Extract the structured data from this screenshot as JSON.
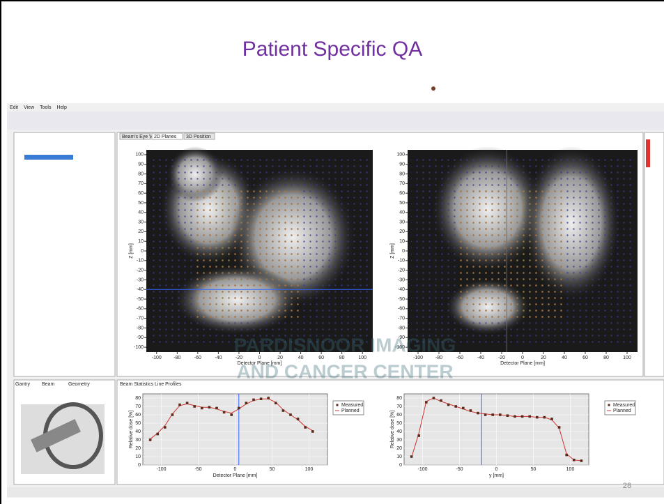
{
  "slide": {
    "title": "Patient Specific QA",
    "page_number": "28",
    "watermark": [
      "PARDISNOOR IMAGING",
      "AND CANCER CENTER"
    ]
  },
  "screenshot": {
    "menu": [
      "Edit",
      "View",
      "Tools",
      "Help"
    ],
    "tabs": [
      "Beam's Eye View",
      "2D Planes",
      "3D Position"
    ],
    "left_tabs": [
      "Gantry",
      "Beam",
      "Geometry"
    ],
    "bottom_tabs": [
      "Beam Statistics",
      "Line Profiles"
    ],
    "dose_maps": [
      {
        "x_label": "Detector Plane [mm]",
        "y_label": "Z [mm]",
        "xlim": [
          -110,
          110
        ],
        "ylim": [
          -105,
          105
        ],
        "xticks": [
          -100,
          -80,
          -60,
          -40,
          -20,
          0,
          20,
          40,
          60,
          80,
          100
        ],
        "yticks": [
          -100,
          -90,
          -80,
          -70,
          -60,
          -50,
          -40,
          -30,
          -20,
          -10,
          0,
          10,
          20,
          30,
          40,
          50,
          60,
          70,
          80,
          90,
          100
        ]
      },
      {
        "x_label": "Detector Plane [mm]",
        "y_label": "Z [mm]",
        "xlim": [
          -110,
          110
        ],
        "ylim": [
          -105,
          105
        ],
        "xticks": [
          -100,
          -80,
          -60,
          -40,
          -20,
          0,
          20,
          40,
          60,
          80,
          100
        ],
        "yticks": [
          -100,
          -90,
          -80,
          -70,
          -60,
          -50,
          -40,
          -30,
          -20,
          -10,
          0,
          10,
          20,
          30,
          40,
          50,
          60,
          70,
          80,
          90,
          100
        ]
      }
    ],
    "profiles": [
      {
        "x_label": "Detector Plane [mm]",
        "y_label": "Relative dose [%]",
        "xlim": [
          -125,
          125
        ],
        "ylim": [
          0,
          85
        ],
        "xticks": [
          -100,
          -50,
          0,
          50,
          100
        ],
        "yticks": [
          0,
          10,
          20,
          30,
          40,
          50,
          60,
          70,
          80
        ],
        "x": [
          -115,
          -105,
          -95,
          -85,
          -75,
          -65,
          -55,
          -45,
          -35,
          -25,
          -15,
          -5,
          5,
          15,
          25,
          35,
          45,
          55,
          65,
          75,
          85,
          95,
          105
        ],
        "series": [
          {
            "name": "Measured",
            "color": "#5a2a1a",
            "values": [
              30,
              37,
              45,
              60,
              72,
              74,
              70,
              68,
              69,
              68,
              63,
              60,
              68,
              74,
              78,
              79,
              80,
              74,
              65,
              60,
              55,
              45,
              40
            ]
          },
          {
            "name": "Planned",
            "color": "#d03030",
            "values": [
              31,
              38,
              47,
              61,
              71,
              73,
              71,
              69,
              69,
              67,
              64,
              62,
              67,
              73,
              77,
              79,
              79,
              75,
              66,
              60,
              54,
              46,
              41
            ]
          }
        ]
      },
      {
        "x_label": "y [mm]",
        "y_label": "Relative dose [%]",
        "xlim": [
          -125,
          125
        ],
        "ylim": [
          0,
          85
        ],
        "xticks": [
          -100,
          -50,
          0,
          50,
          100
        ],
        "yticks": [
          0,
          10,
          20,
          30,
          40,
          50,
          60,
          70,
          80
        ],
        "x": [
          -115,
          -105,
          -95,
          -85,
          -75,
          -65,
          -55,
          -45,
          -35,
          -25,
          -15,
          -5,
          5,
          15,
          25,
          35,
          45,
          55,
          65,
          75,
          85,
          95,
          105,
          115
        ],
        "series": [
          {
            "name": "Measured",
            "color": "#5a2a1a",
            "values": [
              10,
              35,
              75,
              80,
              77,
              72,
              70,
              68,
              65,
              62,
              60,
              60,
              60,
              59,
              58,
              58,
              58,
              57,
              57,
              55,
              45,
              12,
              6,
              5
            ]
          },
          {
            "name": "Planned",
            "color": "#d03030",
            "values": [
              9,
              38,
              76,
              80,
              76,
              73,
              70,
              67,
              64,
              62,
              61,
              60,
              60,
              59,
              58,
              58,
              58,
              57,
              57,
              54,
              44,
              13,
              6,
              5
            ]
          }
        ]
      }
    ]
  }
}
